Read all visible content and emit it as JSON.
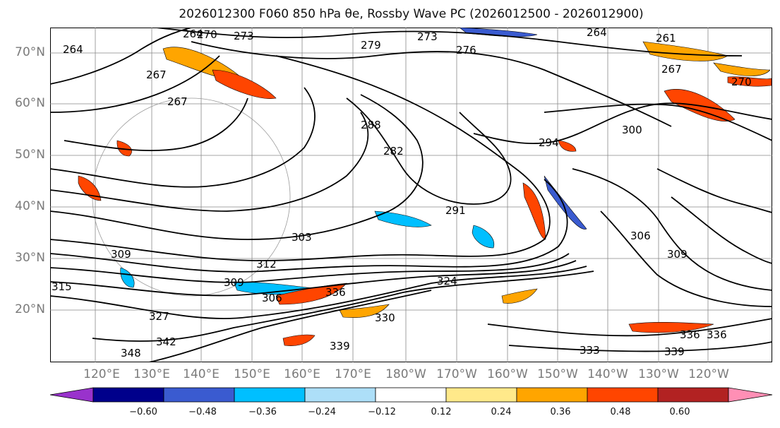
{
  "title": "2026012300 F060 850 hPa θe, Rossby Wave PC (2026012500 - 2026012900)",
  "latitude_labels": [
    "70°N",
    "60°N",
    "50°N",
    "40°N",
    "30°N",
    "20°N"
  ],
  "longitude_labels": [
    "120°E",
    "130°E",
    "140°E",
    "150°E",
    "160°E",
    "170°E",
    "180°W",
    "170°W",
    "160°W",
    "150°W",
    "140°W",
    "130°W",
    "120°W"
  ],
  "contour_labels": [
    "264",
    "270",
    "273",
    "276",
    "279",
    "273",
    "264",
    "261",
    "267",
    "270",
    "264",
    "267",
    "267",
    "288",
    "282",
    "294",
    "300",
    "291",
    "306",
    "309",
    "303",
    "312",
    "309",
    "306",
    "324",
    "327",
    "330",
    "333",
    "336",
    "339",
    "342",
    "348",
    "315",
    "309",
    "336",
    "339",
    "336"
  ],
  "colorbar": {
    "ticks": [
      "−0.60",
      "−0.48",
      "−0.36",
      "−0.24",
      "−0.12",
      "0.12",
      "0.24",
      "0.36",
      "0.48",
      "0.60"
    ],
    "bins": [
      {
        "color": "#9932CC"
      },
      {
        "color": "#00008B"
      },
      {
        "color": "#3A5BD0"
      },
      {
        "color": "#00BFFF"
      },
      {
        "color": "#ADDFF8"
      },
      {
        "color": "#FFFFFF"
      },
      {
        "color": "#FFE98A"
      },
      {
        "color": "#FFA500"
      },
      {
        "color": "#FF4500"
      },
      {
        "color": "#B22222"
      },
      {
        "color": "#FF8FB5"
      }
    ]
  }
}
